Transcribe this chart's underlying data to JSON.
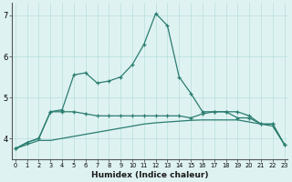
{
  "xlabel": "Humidex (Indice chaleur)",
  "x": [
    0,
    1,
    2,
    3,
    4,
    5,
    6,
    7,
    8,
    9,
    10,
    11,
    12,
    13,
    14,
    15,
    16,
    17,
    18,
    19,
    20,
    21,
    22,
    23
  ],
  "line1": [
    3.75,
    3.9,
    4.0,
    4.65,
    4.7,
    5.55,
    5.6,
    5.35,
    5.4,
    5.5,
    5.8,
    6.3,
    7.05,
    6.75,
    5.5,
    5.1,
    4.65,
    4.65,
    4.65,
    4.5,
    4.5,
    4.35,
    4.35,
    3.85
  ],
  "line2": [
    3.75,
    3.9,
    4.0,
    4.65,
    4.65,
    4.65,
    4.6,
    4.55,
    4.55,
    4.55,
    4.55,
    4.55,
    4.55,
    4.55,
    4.55,
    4.5,
    4.6,
    4.65,
    4.65,
    4.65,
    4.55,
    4.35,
    4.35,
    3.85
  ],
  "line3": [
    3.75,
    3.85,
    3.95,
    3.95,
    4.0,
    4.05,
    4.1,
    4.15,
    4.2,
    4.25,
    4.3,
    4.35,
    4.38,
    4.4,
    4.42,
    4.44,
    4.45,
    4.45,
    4.45,
    4.45,
    4.4,
    4.35,
    4.3,
    3.85
  ],
  "line_color": "#2a7d6f",
  "bg_color": "#dff2f2",
  "grid_color": "#b8dede",
  "axis_color": "#555555",
  "ylim": [
    3.5,
    7.3
  ],
  "xlim": [
    -0.3,
    23.3
  ],
  "yticks": [
    4,
    5,
    6,
    7
  ],
  "xticks": [
    0,
    1,
    2,
    3,
    4,
    5,
    6,
    7,
    8,
    9,
    10,
    11,
    12,
    13,
    14,
    15,
    16,
    17,
    18,
    19,
    20,
    21,
    22,
    23
  ]
}
